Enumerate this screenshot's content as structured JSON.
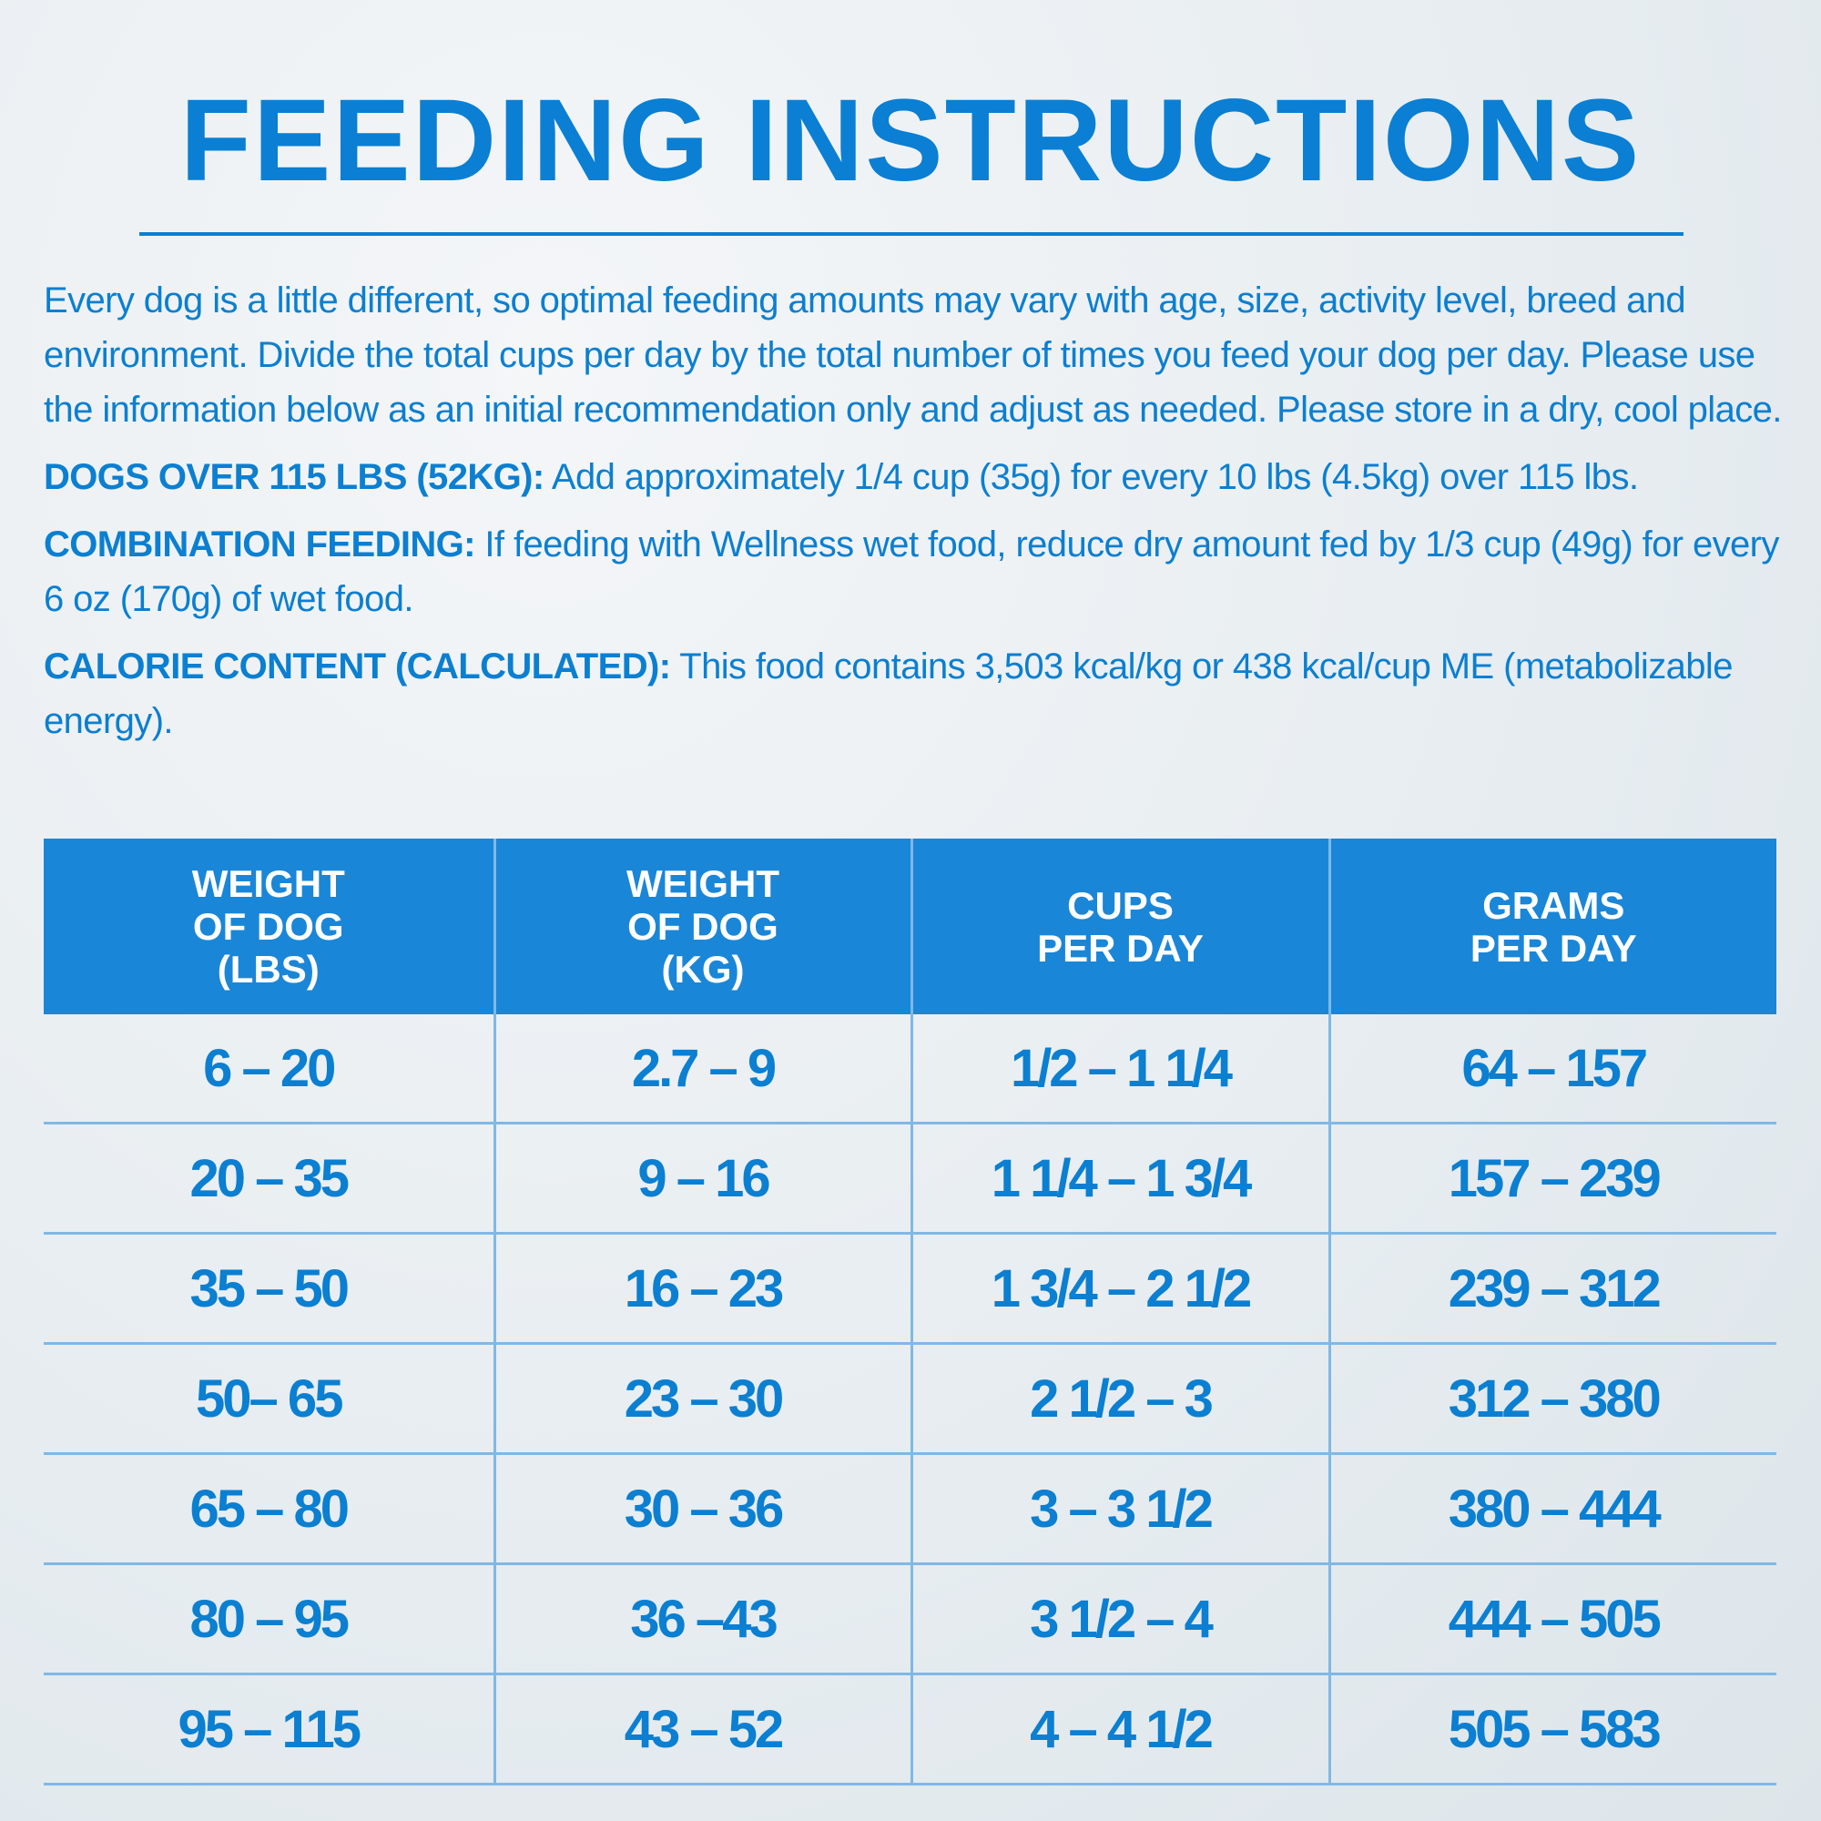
{
  "title": "FEEDING INSTRUCTIONS",
  "intro": "Every dog is a little different, so optimal feeding amounts may vary with age, size, activity level, breed and environment. Divide the total cups per day by the total number of times you feed your dog per day. Please use the information below as an initial recommendation only and adjust as needed. Please store in a dry, cool place.",
  "notes": [
    {
      "label": "DOGS OVER 115 LBS (52KG):",
      "text": "Add approximately 1/4 cup (35g) for every 10 lbs (4.5kg) over 115 lbs."
    },
    {
      "label": "COMBINATION FEEDING:",
      "text": "If feeding with Wellness wet food, reduce dry amount fed by 1/3 cup (49g) for every 6 oz (170g) of wet food."
    },
    {
      "label": "CALORIE CONTENT (CALCULATED):",
      "text": "This food contains 3,503 kcal/kg or 438 kcal/cup ME (metabolizable energy)."
    }
  ],
  "table": {
    "headers": [
      [
        "WEIGHT",
        "OF DOG",
        "(LBS)"
      ],
      [
        "WEIGHT",
        "OF DOG",
        "(KG)"
      ],
      [
        "CUPS",
        "PER DAY"
      ],
      [
        "GRAMS",
        "PER DAY"
      ]
    ],
    "rows": [
      [
        "6 – 20",
        "2.7 – 9",
        "1/2 – 1 1/4",
        "64 – 157"
      ],
      [
        "20 – 35",
        "9 – 16",
        "1 1/4 – 1 3/4",
        "157 – 239"
      ],
      [
        "35 – 50",
        "16 – 23",
        "1 3/4 – 2 1/2",
        "239 – 312"
      ],
      [
        "50– 65",
        "23 – 30",
        "2 1/2 – 3",
        "312 – 380"
      ],
      [
        "65 – 80",
        "30 – 36",
        "3 – 3 1/2",
        "380 – 444"
      ],
      [
        "80 – 95",
        "36 –43",
        "3 1/2 – 4",
        "444 – 505"
      ],
      [
        "95 – 115",
        "43 – 52",
        "4 – 4 1/2",
        "505 – 583"
      ]
    ]
  }
}
